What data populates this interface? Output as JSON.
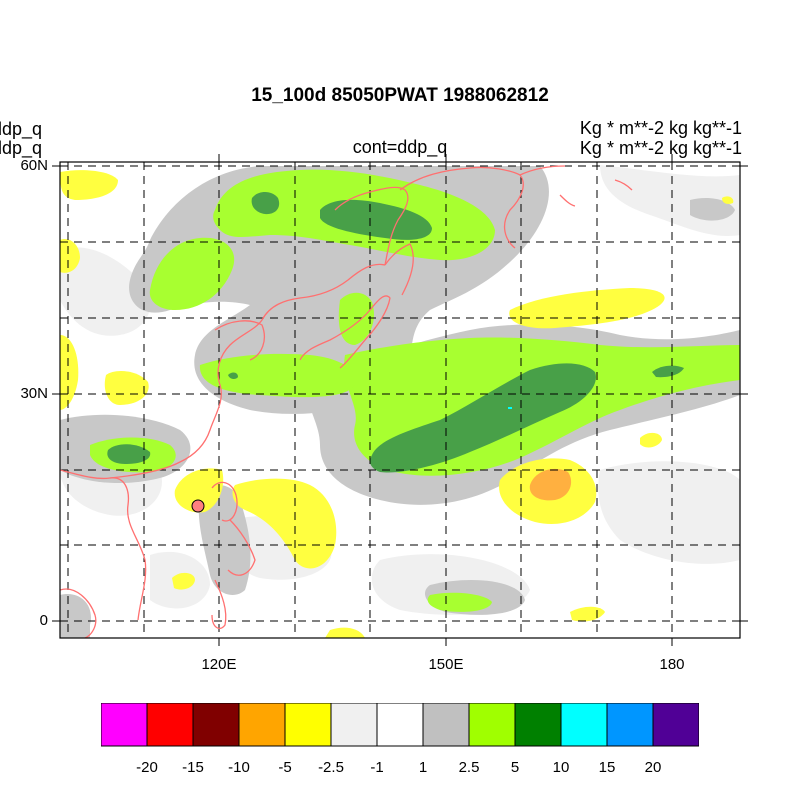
{
  "title": "15_100d 85050PWAT  1988062812",
  "left_strings": [
    "ddp_q",
    "ddp_q"
  ],
  "right_strings": [
    "Kg  * m**-2 kg kg**-1",
    "Kg  * m**-2 kg kg**-1"
  ],
  "center_string": "cont=ddp_q",
  "y_axis_labels": [
    "60N",
    "30N",
    "0"
  ],
  "x_axis_labels": [
    "120E",
    "150E",
    "180"
  ],
  "colorbar": {
    "labels": [
      "-20",
      "-15",
      "-10",
      "-5",
      "-2.5",
      "-1",
      "1",
      "2.5",
      "5",
      "10",
      "15",
      "20"
    ],
    "colors": [
      "#ff00ff",
      "#ff0000",
      "#800000",
      "#ffa500",
      "#ffff00",
      "#f0f0f0",
      "#ffffff",
      "#c0c0c0",
      "#a0ff00",
      "#008000",
      "#00ffff",
      "#0096ff",
      "#500096"
    ]
  },
  "station_marker": {
    "fill": "#ff8080",
    "label": ""
  },
  "coastline_color": "#ff7070"
}
